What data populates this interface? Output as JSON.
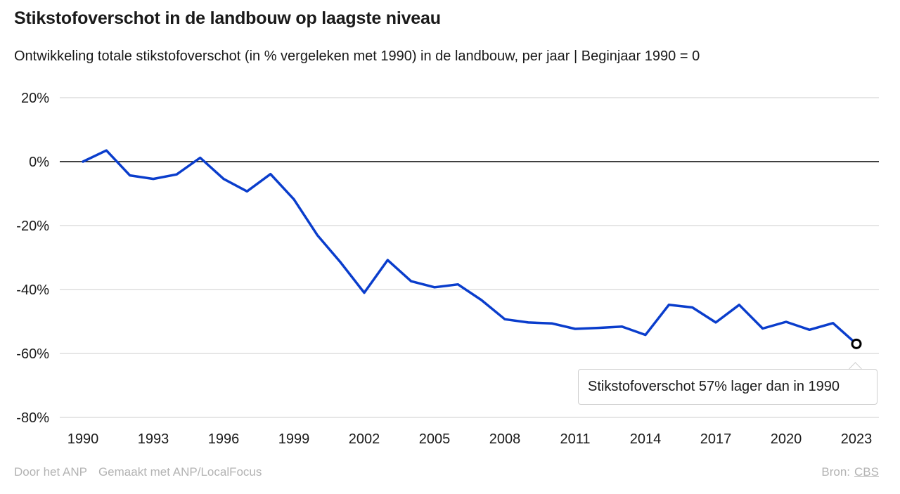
{
  "header": {
    "title": "Stikstofoverschot in de landbouw op laagste niveau",
    "subtitle": "Ontwikkeling totale stikstofoverschot (in % vergeleken met 1990) in de landbouw, per jaar | Beginjaar 1990 = 0"
  },
  "tooltip": {
    "text": "Stikstofoverschot 57% lager dan in 1990"
  },
  "footer": {
    "by": "Door het ANP",
    "made_with": "Gemaakt met ANP/LocalFocus",
    "source_label": "Bron:",
    "source_link": "CBS"
  },
  "colors": {
    "line": "#0a3dcc",
    "grid": "#cccccc",
    "zero_line": "#000000",
    "text": "#1a1a1a",
    "muted": "#b3b3b3"
  },
  "chart_data": {
    "type": "line",
    "title": "Stikstofoverschot in de landbouw op laagste niveau",
    "subtitle": "Ontwikkeling totale stikstofoverschot (in % vergeleken met 1990) in de landbouw, per jaar | Beginjaar 1990 = 0",
    "xlabel": "",
    "ylabel": "",
    "xlim": [
      1990,
      2023
    ],
    "ylim": [
      -80,
      20
    ],
    "x_ticks": [
      1990,
      1993,
      1996,
      1999,
      2002,
      2005,
      2008,
      2011,
      2014,
      2017,
      2020,
      2023
    ],
    "y_ticks": [
      20,
      0,
      -20,
      -40,
      -60,
      -80
    ],
    "y_tick_labels": [
      "20%",
      "0%",
      "-20%",
      "-40%",
      "-60%",
      "-80%"
    ],
    "grid": true,
    "x": [
      1990,
      1991,
      1992,
      1993,
      1994,
      1995,
      1996,
      1997,
      1998,
      1999,
      2000,
      2001,
      2002,
      2003,
      2004,
      2005,
      2006,
      2007,
      2008,
      2009,
      2010,
      2011,
      2012,
      2013,
      2014,
      2015,
      2016,
      2017,
      2018,
      2019,
      2020,
      2021,
      2022,
      2023
    ],
    "values": [
      0,
      3.5,
      -4.3,
      -5.4,
      -4,
      1.2,
      -5.4,
      -9.3,
      -3.9,
      -11.8,
      -23,
      -31.6,
      -41,
      -30.8,
      -37.4,
      -39.3,
      -38.4,
      -43.3,
      -49.3,
      -50.3,
      -50.6,
      -52.3,
      -52,
      -51.6,
      -54.2,
      -44.8,
      -45.6,
      -50.3,
      -44.8,
      -52.2,
      -50.1,
      -52.6,
      -50.5,
      -57
    ],
    "highlight": {
      "x": 2023,
      "y": -57
    }
  }
}
